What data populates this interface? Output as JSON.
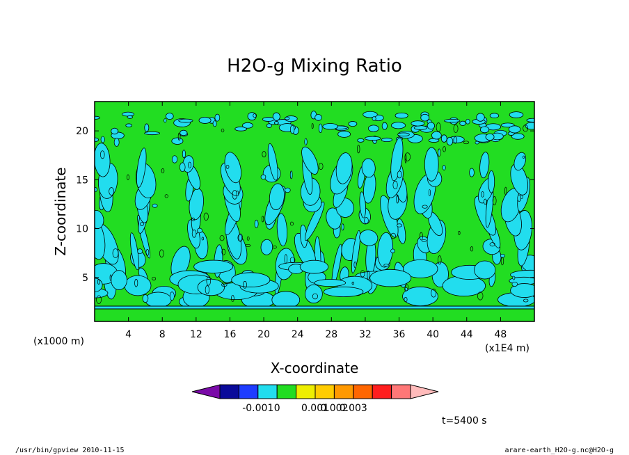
{
  "chart_data": {
    "type": "heatmap",
    "title": "H2O-g Mixing Ratio",
    "xlabel": "X-coordinate",
    "ylabel": "Z-coordinate",
    "x_unit": "(x1E4 m)",
    "y_unit": "(x1000 m)",
    "xlim": [
      0,
      52
    ],
    "ylim": [
      0.5,
      23
    ],
    "x_ticks": [
      "4",
      "8",
      "12",
      "16",
      "20",
      "24",
      "28",
      "32",
      "36",
      "40",
      "44",
      "48"
    ],
    "y_ticks": [
      "5",
      "10",
      "15",
      "20"
    ],
    "x_tick_values": [
      4,
      8,
      12,
      16,
      20,
      24,
      28,
      32,
      36,
      40,
      44,
      48
    ],
    "y_tick_values": [
      5,
      10,
      15,
      20
    ],
    "background_level_color": "#22dd22",
    "low_level_color": "#22ddee",
    "contour_color": "#000000",
    "grid": false,
    "colorbar": {
      "colors": [
        "#7a0aa8",
        "#0a0a9a",
        "#1e3cff",
        "#22ddee",
        "#22dd22",
        "#eeee00",
        "#ffcc00",
        "#ff9900",
        "#ff6600",
        "#ff1e1e",
        "#ff7777",
        "#ffbbbb"
      ],
      "labels": [
        "-0.001",
        "0",
        "0.001",
        "0.002",
        "0.003"
      ],
      "label_boundaries": [
        2,
        3,
        5,
        6,
        7
      ]
    },
    "annotation": "t=5400 s"
  },
  "footer": {
    "left": "/usr/bin/gpview  2010-11-15",
    "right": "arare-earth_H2O-g.nc@H2O-g"
  }
}
